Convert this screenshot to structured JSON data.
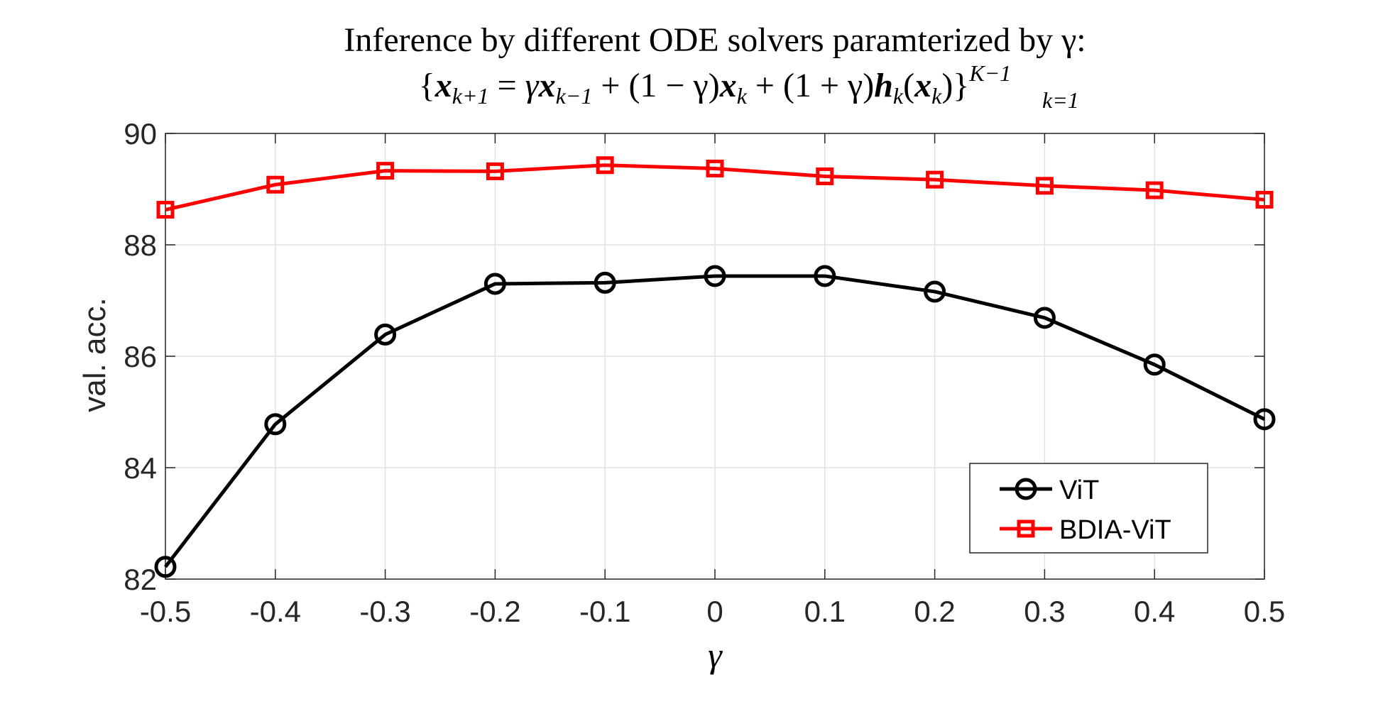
{
  "chart_data": {
    "type": "line",
    "title": "Inference by different ODE solvers paramterized by γ:",
    "subtitle": "{x_{k+1} = γx_{k−1} + (1 − γ)x_k + (1 + γ)h_k(x_k)}_{k=1}^{K−1}",
    "subtitle_parts": {
      "open_brace": "{",
      "x": "x",
      "sub_k_plus_1": "k+1",
      "eq": " = ",
      "gamma": "γ",
      "sub_k_minus_1": "k−1",
      "plus": " + ",
      "one_minus_gamma": "(1 − γ)",
      "sub_k": "k",
      "one_plus_gamma": "(1 + γ)",
      "h": "h",
      "lparen": "(",
      "rparen": ")",
      "close_brace": "}",
      "sup_upper": "K−1",
      "sub_lower": "k=1"
    },
    "xlabel": "γ",
    "ylabel": "val. acc.",
    "x": [
      -0.5,
      -0.4,
      -0.3,
      -0.2,
      -0.1,
      0,
      0.1,
      0.2,
      0.3,
      0.4,
      0.5
    ],
    "xticklabels": [
      "-0.5",
      "-0.4",
      "-0.3",
      "-0.2",
      "-0.1",
      "0",
      "0.1",
      "0.2",
      "0.3",
      "0.4",
      "0.5"
    ],
    "yticks": [
      82,
      84,
      86,
      88,
      90
    ],
    "yticklabels": [
      "82",
      "84",
      "86",
      "88",
      "90"
    ],
    "xlim": [
      -0.5,
      0.5
    ],
    "ylim": [
      82,
      90
    ],
    "grid": true,
    "legend_position": "bottom-right",
    "series": [
      {
        "name": "ViT",
        "color": "#000000",
        "marker": "circle",
        "values": [
          82.22,
          84.78,
          86.39,
          87.3,
          87.32,
          87.44,
          87.44,
          87.16,
          86.69,
          85.85,
          84.87
        ]
      },
      {
        "name": "BDIA-ViT",
        "color": "#ff0000",
        "marker": "square",
        "values": [
          88.63,
          89.08,
          89.33,
          89.32,
          89.43,
          89.37,
          89.23,
          89.17,
          89.06,
          88.98,
          88.81
        ]
      }
    ]
  }
}
